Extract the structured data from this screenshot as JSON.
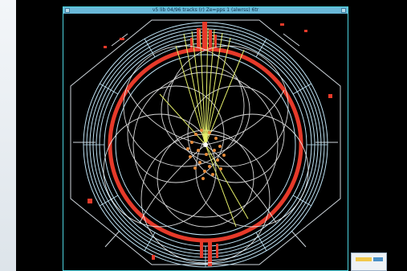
{
  "window": {
    "title": "v5 lib 04/96 tracks (r) Ze=pps 1 (alwrss) 6tr"
  },
  "colors": {
    "background": "#000000",
    "detector_rings": "#bfe3f5",
    "calorimeter": "#e63a2a",
    "tracks_white": "#f2f2f2",
    "tracks_yellow": "#e6f06a",
    "vertex_hits": "#e58a3a",
    "frame_border": "#4cd2df"
  },
  "icons": {
    "close": "close-icon",
    "minimize": "minimize-icon"
  }
}
